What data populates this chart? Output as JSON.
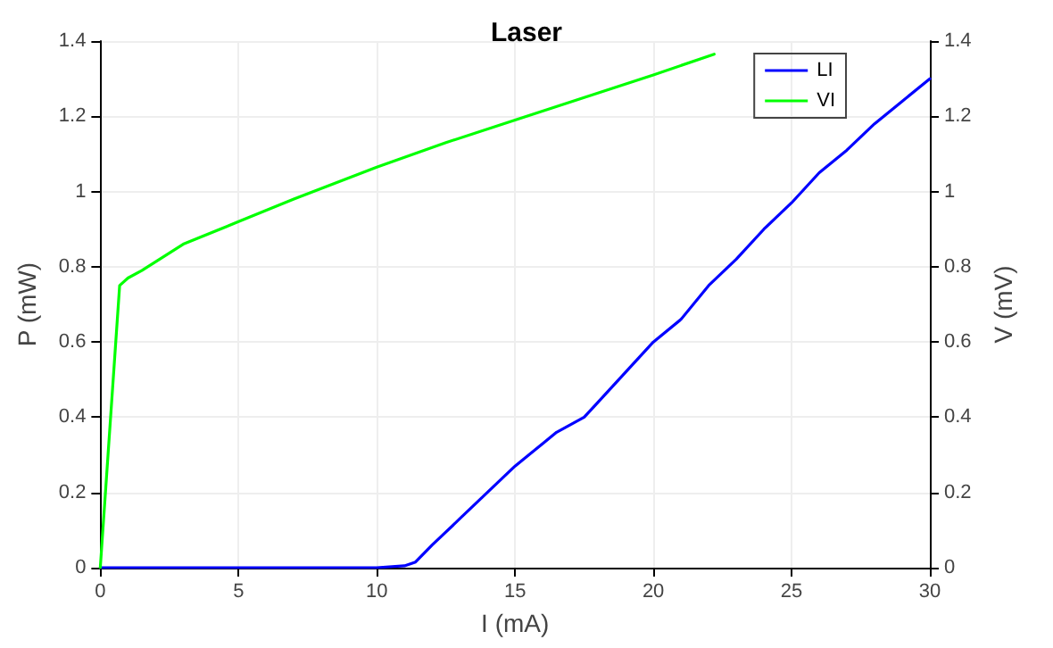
{
  "chart_data": {
    "type": "line",
    "title": "Laser",
    "xlabel": "I (mA)",
    "ylabel": "P (mW)",
    "y2label": "V (mV)",
    "xlim": [
      0,
      30
    ],
    "xticks": [
      0,
      5,
      10,
      15,
      20,
      25,
      30
    ],
    "ylim": [
      0,
      1.4
    ],
    "yticks": [
      0,
      0.2,
      0.4,
      0.6,
      0.8,
      1,
      1.2,
      1.4
    ],
    "y2lim": [
      0,
      1.4
    ],
    "y2ticks": [
      0,
      0.2,
      0.4,
      0.6,
      0.8,
      1,
      1.2,
      1.4
    ],
    "grid": true,
    "legend": "top right",
    "marker": "none",
    "line_style": "solid",
    "series": [
      {
        "name": "LI",
        "color": "#0000ff",
        "x": [
          0,
          10,
          11,
          11.4,
          12,
          13,
          14,
          15,
          16,
          16.5,
          17.5,
          18,
          19,
          20,
          21,
          22,
          23,
          24,
          25,
          26,
          27,
          28,
          29,
          30
        ],
        "values": [
          0,
          0,
          0.005,
          0.015,
          0.06,
          0.13,
          0.2,
          0.27,
          0.33,
          0.36,
          0.4,
          0.44,
          0.52,
          0.6,
          0.66,
          0.75,
          0.82,
          0.9,
          0.97,
          1.05,
          1.11,
          1.18,
          1.24,
          1.3
        ]
      },
      {
        "name": "VI",
        "color": "#00ff00",
        "axis": "y2",
        "x": [
          0,
          0.7,
          1,
          1.5,
          3,
          5,
          7,
          10,
          12.5,
          15,
          17.5,
          20,
          22.2
        ],
        "values": [
          0,
          0.75,
          0.77,
          0.79,
          0.86,
          0.92,
          0.98,
          1.065,
          1.13,
          1.19,
          1.25,
          1.31,
          1.365
        ]
      }
    ]
  }
}
